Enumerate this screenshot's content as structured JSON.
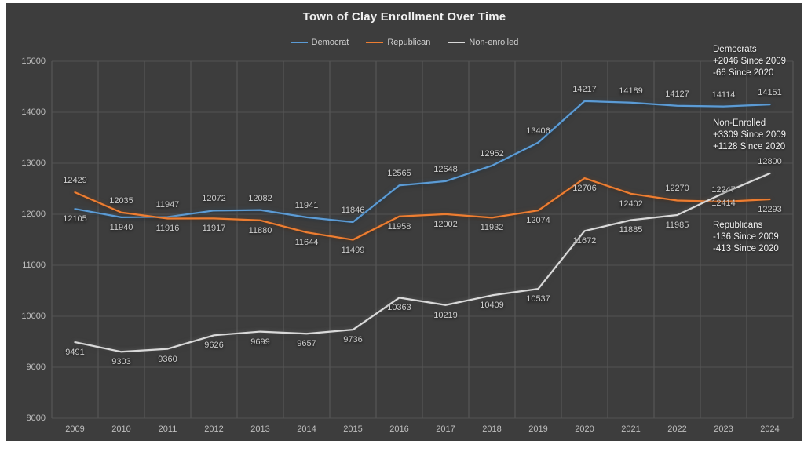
{
  "chart_data": {
    "type": "line",
    "title": "Town of Clay Enrollment Over Time",
    "categories": [
      "2009",
      "2010",
      "2011",
      "2012",
      "2013",
      "2014",
      "2015",
      "2016",
      "2017",
      "2018",
      "2019",
      "2020",
      "2021",
      "2022",
      "2023",
      "2024"
    ],
    "series": [
      {
        "name": "Democrat",
        "color": "#5b9bd5",
        "values": [
          12105,
          11940,
          11947,
          12072,
          12082,
          11941,
          11846,
          12565,
          12648,
          12952,
          13406,
          14217,
          14189,
          14127,
          14114,
          14151
        ]
      },
      {
        "name": "Republican",
        "color": "#ed7d31",
        "values": [
          12429,
          12035,
          11916,
          11917,
          11880,
          11644,
          11499,
          11958,
          12002,
          11932,
          12074,
          12706,
          12402,
          12270,
          12247,
          12293
        ]
      },
      {
        "name": "Non-enrolled",
        "color": "#d9d9d9",
        "values": [
          9491,
          9303,
          9360,
          9626,
          9699,
          9657,
          9736,
          10363,
          10219,
          10409,
          10537,
          11672,
          11885,
          11985,
          12414,
          12800
        ]
      }
    ],
    "ylim": [
      8000,
      15000
    ],
    "yticks": [
      15000,
      14000,
      13000,
      12000,
      11000,
      10000,
      9000,
      8000
    ],
    "grid": true,
    "legend_position": "top",
    "annotations": [
      {
        "title": "Democrats",
        "lines": [
          "+2046 Since 2009",
          "-66 Since 2020"
        ]
      },
      {
        "title": "Non-Enrolled",
        "lines": [
          "+3309 Since 2009",
          "+1128 Since 2020"
        ]
      },
      {
        "title": "Republicans",
        "lines": [
          "-136 Since 2009",
          "-413 Since 2020"
        ]
      }
    ]
  },
  "colors": {
    "background": "#3d3d3d",
    "frame": "#ffffff",
    "gridline": "#5c5c5c",
    "axis_text": "#bfbfbf",
    "data_label_text": "#cdcdcd",
    "title_text": "#f0f0f0"
  }
}
